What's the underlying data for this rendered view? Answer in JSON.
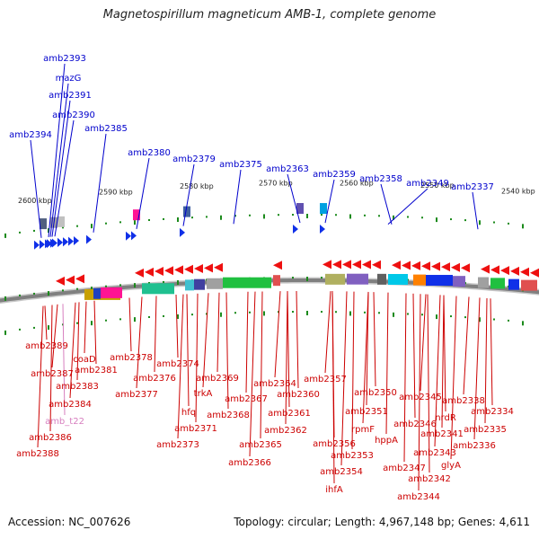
{
  "title": "Magnetospirillum magneticum AMB-1, complete genome",
  "footer": {
    "accession": "Accession: NC_007626",
    "summary": "Topology: circular; Length: 4,967,148 bp; Genes: 4,611"
  },
  "colors": {
    "forward_label": "#0000cc",
    "reverse_label": "#cc0000",
    "rna_label": "#d77fbf",
    "backbone": "#808080",
    "tick": "#1b8a1b",
    "forward_gene": "#1030e8",
    "reverse_gene": "#ee1010"
  },
  "ticks": [
    "2600 kbp",
    "2590 kbp",
    "2580 kbp",
    "2570 kbp",
    "2560 kbp",
    "2550 kbp",
    "2540 kbp"
  ],
  "forward_labels": [
    "amb2393",
    "mazG",
    "amb2391",
    "amb2390",
    "amb2394",
    "amb2385",
    "amb2380",
    "amb2379",
    "amb2375",
    "amb2363",
    "amb2359",
    "amb2358",
    "amb2349",
    "amb2337"
  ],
  "reverse_labels": [
    "amb2389",
    "coaD",
    "amb2387",
    "amb2381",
    "amb2383",
    "amb2384",
    "amb_t22",
    "amb2386",
    "amb2388",
    "amb2378",
    "amb2376",
    "amb2377",
    "amb2374",
    "amb2369",
    "trkA",
    "hfq",
    "amb2371",
    "amb2373",
    "amb2368",
    "amb2367",
    "amb2364",
    "amb2360",
    "amb2365",
    "amb2366",
    "amb2361",
    "amb2362",
    "amb2357",
    "amb2350",
    "amb2351",
    "rpmF",
    "amb2356",
    "amb2353",
    "amb2354",
    "ihfA",
    "hppA",
    "amb2345",
    "amb2346",
    "amb2347",
    "amb2343",
    "amb2342",
    "amb2344",
    "amb2338",
    "nrdR",
    "amb2341",
    "glyA",
    "amb2334",
    "amb2335",
    "amb2336"
  ]
}
